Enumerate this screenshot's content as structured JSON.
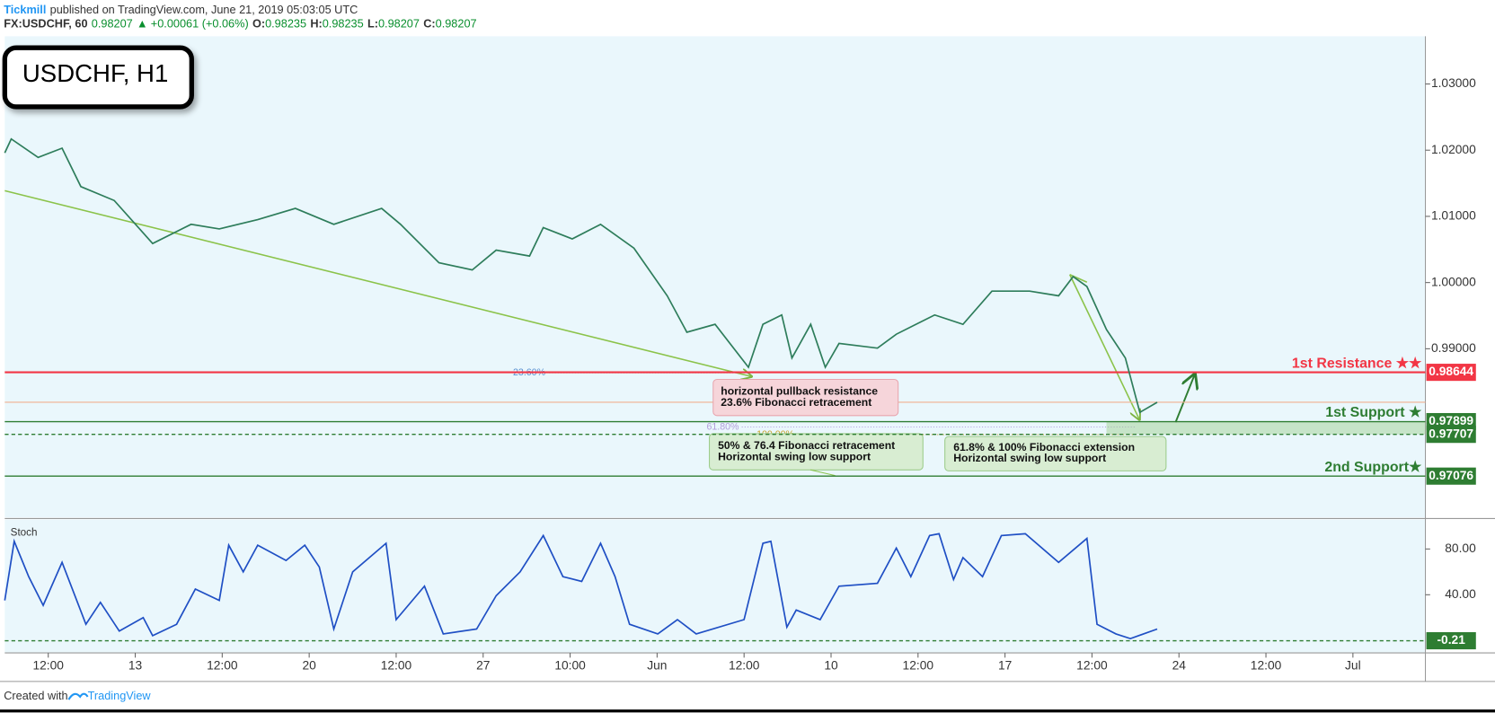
{
  "header": {
    "publisher": "Tickmill",
    "published": "published on TradingView.com, June 21, 2019 05:03:05 UTC",
    "symbol": "FX:USDCHF, 60",
    "last": "0.98207",
    "change": "+0.00061 (+0.06%)",
    "ohlc": [
      {
        "label": "O:",
        "value": "0.98235"
      },
      {
        "label": "H:",
        "value": "0.98235"
      },
      {
        "label": "L:",
        "value": "0.98207"
      },
      {
        "label": "C:",
        "value": "0.98207"
      }
    ]
  },
  "chart_data": [
    {
      "type": "line",
      "title": "USDCHF, H1",
      "color": "#2e7d5b",
      "x": [
        0,
        0.9,
        4.6,
        7.9,
        10.5,
        15.1,
        20.4,
        25.7,
        29.6,
        34.9,
        40.1,
        45.4,
        52.0,
        54.6,
        59.9,
        64.5,
        67.8,
        72.4,
        74.3,
        78.3,
        82.2,
        86.8,
        91.4,
        94.1,
        98.0,
        102.6,
        104.6,
        107.2,
        108.6,
        111.2,
        113.2,
        115.1,
        120.4,
        123.0,
        128.3,
        132.2,
        136.2,
        141.4,
        145.4,
        147.4,
        149.3,
        152.0,
        154.6,
        156.6,
        159.0
      ],
      "values": [
        1.0196,
        1.0217,
        1.0189,
        1.0203,
        1.0145,
        1.0124,
        1.0059,
        1.0088,
        1.0081,
        1.0095,
        1.0112,
        1.0088,
        1.0112,
        1.0088,
        1.003,
        1.0019,
        1.0049,
        1.004,
        1.0083,
        1.0066,
        1.0088,
        1.0052,
        0.998,
        0.9925,
        0.9937,
        0.9872,
        0.9937,
        0.9951,
        0.9886,
        0.9937,
        0.9872,
        0.9908,
        0.9901,
        0.9922,
        0.9951,
        0.9937,
        0.9987,
        0.9987,
        0.998,
        1.0009,
        0.9994,
        0.9929,
        0.9886,
        0.9804,
        0.9819
      ],
      "xlim": [
        0,
        196
      ],
      "xticks": [
        {
          "value": 6,
          "label": "12:00"
        },
        {
          "value": 18,
          "label": "13"
        },
        {
          "value": 30,
          "label": "12:00"
        },
        {
          "value": 42,
          "label": "20"
        },
        {
          "value": 54,
          "label": "12:00"
        },
        {
          "value": 66,
          "label": "27"
        },
        {
          "value": 78,
          "label": "10:00"
        },
        {
          "value": 90,
          "label": "Jun"
        },
        {
          "value": 102,
          "label": "12:00"
        },
        {
          "value": 114,
          "label": "10"
        },
        {
          "value": 126,
          "label": "12:00"
        },
        {
          "value": 138,
          "label": "17"
        },
        {
          "value": 150,
          "label": "12:00"
        },
        {
          "value": 162,
          "label": "24"
        },
        {
          "value": 174,
          "label": "12:00"
        },
        {
          "value": 186,
          "label": "Jul"
        }
      ],
      "ylim": [
        0.9645,
        1.0372
      ],
      "yticks": [
        {
          "value": 0.99,
          "label": "0.99000"
        },
        {
          "value": 1.0,
          "label": "1.00000"
        },
        {
          "value": 1.01,
          "label": "1.01000"
        },
        {
          "value": 1.02,
          "label": "1.02000"
        },
        {
          "value": 1.03,
          "label": "1.03000"
        }
      ],
      "levels": [
        {
          "value": 0.98644,
          "label": "0.98644",
          "text": "1st Resistance ★★",
          "color": "#f23645"
        },
        {
          "value": 0.97899,
          "label": "0.97899",
          "text": "1st Support ★",
          "color": "#2e7d32"
        },
        {
          "value": 0.97707,
          "label": "0.97707",
          "color": "#2e7d32"
        },
        {
          "value": 0.97076,
          "label": "0.97076",
          "text": "2nd Support★",
          "color": "#2e7d32"
        }
      ],
      "fib_labels": [
        "23.60%",
        "61.80%",
        "100.00%"
      ],
      "notes": [
        [
          "horizontal pullback resistance",
          "23.6% Fibonacci retracement"
        ],
        [
          "50% & 76.4 Fibonacci retracement",
          "Horizontal swing low support"
        ],
        [
          "61.8%  & 100% Fibonacci extension",
          "Horizontal swing low support"
        ]
      ]
    },
    {
      "type": "line",
      "title": "Stoch",
      "color": "#1f4fc4",
      "x": [
        0,
        1.3,
        3.3,
        5.3,
        7.9,
        11.2,
        13.2,
        15.8,
        19.1,
        20.4,
        23.7,
        26.3,
        29.6,
        30.9,
        32.9,
        34.9,
        38.8,
        41.4,
        43.4,
        45.4,
        48.0,
        52.6,
        54.0,
        57.9,
        60.5,
        65.1,
        67.8,
        71.1,
        74.3,
        77.0,
        79.6,
        82.2,
        84.2,
        86.2,
        90.1,
        92.8,
        95.4,
        102.0,
        104.6,
        105.7,
        107.9,
        109.2,
        112.5,
        115.1,
        120.4,
        123.0,
        125.0,
        127.6,
        128.9,
        130.9,
        132.2,
        134.9,
        137.5,
        140.8,
        145.4,
        149.3,
        150.7,
        153.3,
        155.3,
        159.0
      ],
      "values": [
        35.0,
        86.7,
        55.8,
        30.8,
        68.3,
        14.2,
        33.3,
        8.3,
        20.0,
        4.2,
        14.2,
        45.0,
        35.0,
        83.3,
        60.0,
        83.3,
        70.0,
        83.3,
        64.2,
        10.0,
        60.0,
        85.0,
        18.3,
        47.5,
        5.8,
        10.0,
        39.2,
        60.0,
        91.7,
        55.8,
        51.7,
        85.0,
        55.8,
        14.2,
        5.8,
        18.3,
        5.8,
        18.3,
        85.0,
        86.7,
        11.7,
        26.7,
        18.3,
        47.5,
        50.0,
        80.8,
        55.8,
        91.7,
        93.3,
        53.3,
        72.5,
        55.8,
        91.7,
        93.3,
        68.3,
        89.2,
        14.2,
        5.8,
        1.7,
        10.0
      ],
      "xlim": [
        0,
        196
      ],
      "ylim": [
        -10.8,
        105.8
      ],
      "yticks": [
        {
          "value": 40,
          "label": "40.00"
        },
        {
          "value": 80,
          "label": "80.00"
        }
      ],
      "level": {
        "value": -0.21,
        "label": "-0.21",
        "color": "#2e7d32"
      }
    }
  ],
  "footer": {
    "created_with": "Created with",
    "brand": "TradingView"
  }
}
